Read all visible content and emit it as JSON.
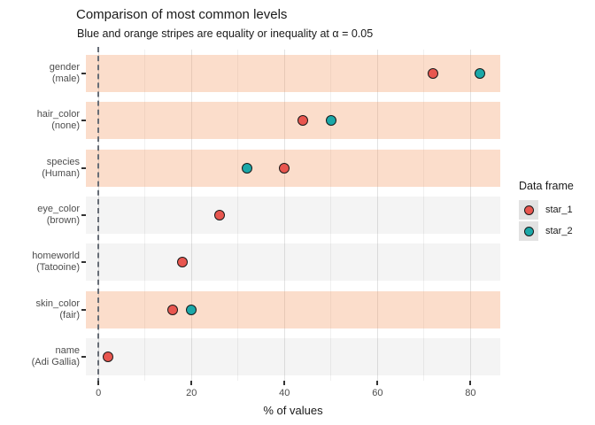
{
  "title": "Comparison of most common levels",
  "subtitle": "Blue and orange stripes are equality or inequality at α = 0.05",
  "legend": {
    "title": "Data frame",
    "items": [
      {
        "label": "star_1",
        "color": "#e8564f"
      },
      {
        "label": "star_2",
        "color": "#1ba8a8"
      }
    ]
  },
  "chart_data": {
    "type": "scatter",
    "subtype": "horizontal-dot-plot",
    "title": "Comparison of most common levels",
    "subtitle": "Blue and orange stripes are equality or inequality at α = 0.05",
    "xlabel": "% of values",
    "ylabel": "",
    "xlim": [
      -2.7,
      86.4
    ],
    "x_major_ticks": [
      0,
      20,
      40,
      60,
      80
    ],
    "x_minor_ticks": [
      10,
      30,
      50,
      70
    ],
    "vline_x": 0,
    "grid": "vertical",
    "legend_position": "right",
    "series_colors": {
      "star_1": "#e8564f",
      "star_2": "#1ba8a8"
    },
    "stripe_colors": {
      "orange": "rgba(244,148,92,0.32)",
      "gray": "rgba(128,128,128,0.085)"
    },
    "categories": [
      {
        "label_line1": "gender",
        "label_line2": "(male)",
        "stripe": "orange",
        "points": [
          {
            "series": "star_1",
            "value": 72
          },
          {
            "series": "star_2",
            "value": 82
          }
        ]
      },
      {
        "label_line1": "hair_color",
        "label_line2": "(none)",
        "stripe": "orange",
        "points": [
          {
            "series": "star_1",
            "value": 44
          },
          {
            "series": "star_2",
            "value": 50
          }
        ]
      },
      {
        "label_line1": "species",
        "label_line2": "(Human)",
        "stripe": "orange",
        "points": [
          {
            "series": "star_2",
            "value": 32
          },
          {
            "series": "star_1",
            "value": 40
          }
        ]
      },
      {
        "label_line1": "eye_color",
        "label_line2": "(brown)",
        "stripe": "gray",
        "points": [
          {
            "series": "star_1",
            "value": 26
          }
        ]
      },
      {
        "label_line1": "homeworld",
        "label_line2": "(Tatooine)",
        "stripe": "gray",
        "points": [
          {
            "series": "star_1",
            "value": 18
          }
        ]
      },
      {
        "label_line1": "skin_color",
        "label_line2": "(fair)",
        "stripe": "orange",
        "points": [
          {
            "series": "star_1",
            "value": 16
          },
          {
            "series": "star_2",
            "value": 20
          }
        ]
      },
      {
        "label_line1": "name",
        "label_line2": "(Adi Gallia)",
        "stripe": "gray",
        "points": [
          {
            "series": "star_1",
            "value": 2
          }
        ]
      }
    ]
  }
}
